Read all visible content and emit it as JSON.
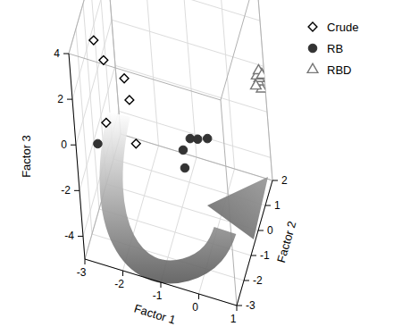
{
  "chart_data": {
    "type": "scatter3d",
    "x_label": "Factor 1",
    "y_label": "Factor 2",
    "z_label": "Factor 3",
    "xlim": [
      -3,
      1
    ],
    "ylim": [
      -3,
      2
    ],
    "zlim": [
      -5,
      4
    ],
    "xticks": [
      -3,
      -2,
      -1,
      0,
      1
    ],
    "yticks": [
      -3,
      -2,
      -1,
      0,
      1,
      2
    ],
    "zticks": [
      -4,
      -2,
      0,
      2,
      4
    ],
    "grid": true,
    "legend": "upper right",
    "series": [
      {
        "name": "Crude",
        "marker": "open-diamond",
        "color": "#000000",
        "x": [
          -2.67,
          -2.47,
          -1.9,
          -1.83,
          -2.53,
          -1.72
        ],
        "y": [
          -1.5,
          -1.4,
          -1.6,
          -1.5,
          -1.4,
          -1.6
        ],
        "z": [
          3.11,
          2.23,
          1.94,
          0.92,
          -0.54,
          -0.83
        ]
      },
      {
        "name": "RB",
        "marker": "filled-circle",
        "color": "#333333",
        "x": [
          -2.9,
          -0.61,
          -0.42,
          -0.17,
          0.07,
          -0.6
        ],
        "y": [
          -1,
          -1,
          -0.9,
          -1.1,
          -1,
          -1
        ],
        "z": [
          -2.09,
          -1.2,
          -0.71,
          -0.39,
          -0.35,
          -1.98
        ]
      },
      {
        "name": "RBD",
        "marker": "open-triangle",
        "color": "#777777",
        "x": [
          0.95,
          0.9,
          0.92,
          0.97,
          0.88,
          0.93,
          0.85,
          0.96
        ],
        "y": [
          1.8,
          1.7,
          1.75,
          1.85,
          1.65,
          1.7,
          1.6,
          1.9
        ],
        "z": [
          -0.8,
          -0.4,
          -0.3,
          -0.2,
          -0.1,
          0.1,
          -0.5,
          -0.3
        ]
      }
    ]
  }
}
